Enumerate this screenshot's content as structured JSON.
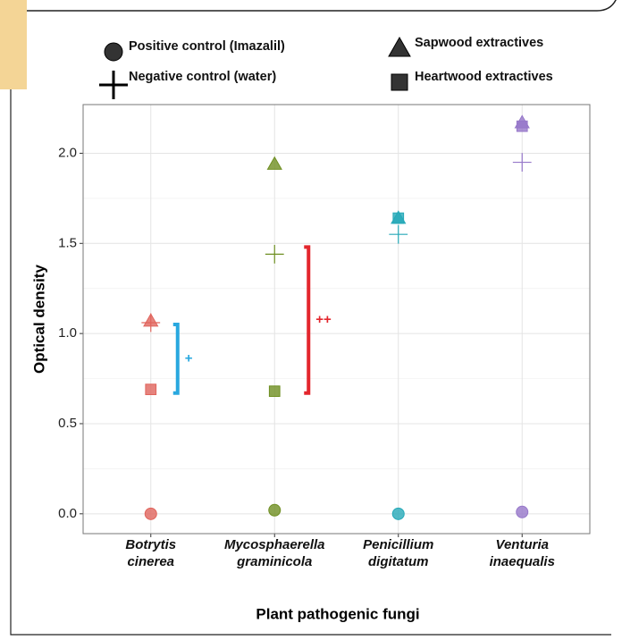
{
  "chart_data": {
    "type": "scatter",
    "x_label": "Plant pathogenic fungi",
    "y_label": "Optical density",
    "categories": [
      [
        "Botrytis",
        "cinerea"
      ],
      [
        "Mycosphaerella",
        "graminicola"
      ],
      [
        "Penicillium",
        "digitatum"
      ],
      [
        "Venturia",
        "inaequalis"
      ]
    ],
    "category_colors": [
      "#e0645c",
      "#6f8f22",
      "#26a9b8",
      "#9677c9"
    ],
    "series": [
      {
        "name": "Positive control (Imazalil)",
        "shape": "circle",
        "values": [
          0,
          0.02,
          0,
          0.01
        ]
      },
      {
        "name": "Negative control (water)",
        "shape": "plus",
        "values": [
          1.06,
          1.44,
          1.55,
          1.95
        ]
      },
      {
        "name": "Sapwood extractives",
        "shape": "triangle",
        "values": [
          1.07,
          1.94,
          1.64,
          2.17
        ]
      },
      {
        "name": "Heartwood extractives",
        "shape": "square",
        "values": [
          0.69,
          0.68,
          1.64,
          2.15
        ]
      }
    ],
    "annotations": [
      {
        "text": "+",
        "from": 0.67,
        "to": 1.05,
        "color": "#29a8df"
      },
      {
        "text": "++",
        "from": 0.67,
        "to": 1.48,
        "color": "#e3262d"
      }
    ],
    "ylim": [
      -0.11,
      2.27
    ],
    "yticks": [
      {
        "value": 0,
        "label": "0.0"
      },
      {
        "value": 0.5,
        "label": "0.5"
      },
      {
        "value": 1,
        "label": "1.0"
      },
      {
        "value": 1.5,
        "label": "1.5"
      },
      {
        "value": 2,
        "label": "2.0"
      }
    ],
    "grid": true
  }
}
